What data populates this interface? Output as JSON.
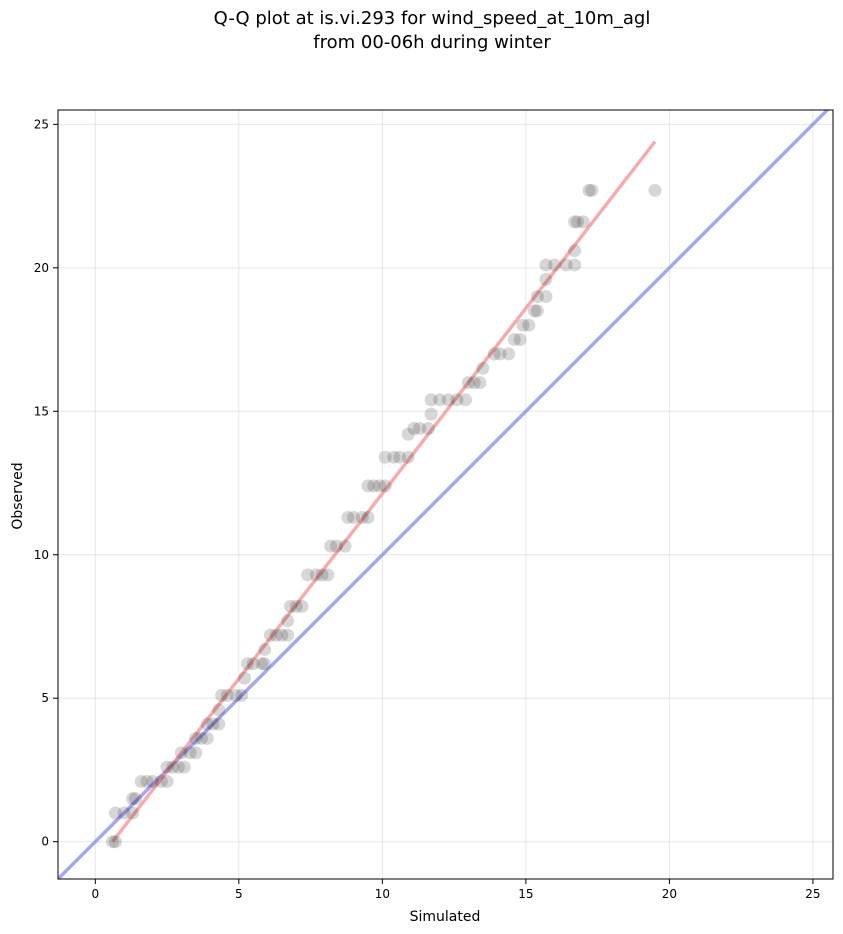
{
  "chart_data": {
    "type": "scatter",
    "title": "Q-Q plot at is.vi.293 for wind_speed_at_10m_agl",
    "subtitle": "from 00-06h during winter",
    "xlabel": "Simulated",
    "ylabel": "Observed",
    "xlim": [
      -1.3,
      25.7
    ],
    "ylim": [
      -1.3,
      25.5
    ],
    "xticks": [
      0,
      5,
      10,
      15,
      20,
      25
    ],
    "yticks": [
      0,
      5,
      10,
      15,
      20,
      25
    ],
    "xticklabels": [
      "0",
      "5",
      "10",
      "15",
      "20",
      "25"
    ],
    "yticklabels": [
      "0",
      "5",
      "10",
      "15",
      "20",
      "25"
    ],
    "grid": true,
    "colors": {
      "points": "#222222",
      "fit_line": "#f08080",
      "identity_line": "#8080f0"
    },
    "points": [
      {
        "x": 0.7,
        "y": 0.0
      },
      {
        "x": 0.6,
        "y": 0.0
      },
      {
        "x": 0.7,
        "y": 1.0
      },
      {
        "x": 1.0,
        "y": 1.0
      },
      {
        "x": 1.3,
        "y": 1.0
      },
      {
        "x": 1.3,
        "y": 1.5
      },
      {
        "x": 1.4,
        "y": 1.5
      },
      {
        "x": 1.6,
        "y": 2.1
      },
      {
        "x": 1.8,
        "y": 2.1
      },
      {
        "x": 2.0,
        "y": 2.1
      },
      {
        "x": 2.3,
        "y": 2.1
      },
      {
        "x": 2.5,
        "y": 2.1
      },
      {
        "x": 2.5,
        "y": 2.6
      },
      {
        "x": 2.7,
        "y": 2.6
      },
      {
        "x": 2.9,
        "y": 2.6
      },
      {
        "x": 3.1,
        "y": 2.6
      },
      {
        "x": 3.0,
        "y": 3.1
      },
      {
        "x": 3.3,
        "y": 3.1
      },
      {
        "x": 3.5,
        "y": 3.1
      },
      {
        "x": 3.5,
        "y": 3.6
      },
      {
        "x": 3.7,
        "y": 3.6
      },
      {
        "x": 3.9,
        "y": 3.6
      },
      {
        "x": 3.9,
        "y": 4.1
      },
      {
        "x": 4.1,
        "y": 4.1
      },
      {
        "x": 4.3,
        "y": 4.1
      },
      {
        "x": 4.3,
        "y": 4.6
      },
      {
        "x": 4.4,
        "y": 5.1
      },
      {
        "x": 4.6,
        "y": 5.1
      },
      {
        "x": 4.9,
        "y": 5.1
      },
      {
        "x": 5.1,
        "y": 5.1
      },
      {
        "x": 5.2,
        "y": 5.7
      },
      {
        "x": 5.3,
        "y": 6.2
      },
      {
        "x": 5.5,
        "y": 6.2
      },
      {
        "x": 5.8,
        "y": 6.2
      },
      {
        "x": 5.9,
        "y": 6.2
      },
      {
        "x": 5.9,
        "y": 6.7
      },
      {
        "x": 6.1,
        "y": 7.2
      },
      {
        "x": 6.3,
        "y": 7.2
      },
      {
        "x": 6.5,
        "y": 7.2
      },
      {
        "x": 6.7,
        "y": 7.2
      },
      {
        "x": 6.7,
        "y": 7.7
      },
      {
        "x": 6.8,
        "y": 8.2
      },
      {
        "x": 7.0,
        "y": 8.2
      },
      {
        "x": 7.2,
        "y": 8.2
      },
      {
        "x": 7.4,
        "y": 9.3
      },
      {
        "x": 7.7,
        "y": 9.3
      },
      {
        "x": 7.9,
        "y": 9.3
      },
      {
        "x": 8.1,
        "y": 9.3
      },
      {
        "x": 8.2,
        "y": 10.3
      },
      {
        "x": 8.4,
        "y": 10.3
      },
      {
        "x": 8.7,
        "y": 10.3
      },
      {
        "x": 8.8,
        "y": 11.3
      },
      {
        "x": 9.0,
        "y": 11.3
      },
      {
        "x": 9.3,
        "y": 11.3
      },
      {
        "x": 9.5,
        "y": 11.3
      },
      {
        "x": 9.5,
        "y": 12.4
      },
      {
        "x": 9.7,
        "y": 12.4
      },
      {
        "x": 9.9,
        "y": 12.4
      },
      {
        "x": 10.1,
        "y": 12.4
      },
      {
        "x": 10.1,
        "y": 13.4
      },
      {
        "x": 10.4,
        "y": 13.4
      },
      {
        "x": 10.6,
        "y": 13.4
      },
      {
        "x": 10.9,
        "y": 13.4
      },
      {
        "x": 10.9,
        "y": 14.2
      },
      {
        "x": 11.1,
        "y": 14.4
      },
      {
        "x": 11.3,
        "y": 14.4
      },
      {
        "x": 11.6,
        "y": 14.4
      },
      {
        "x": 11.7,
        "y": 14.9
      },
      {
        "x": 11.7,
        "y": 15.4
      },
      {
        "x": 12.0,
        "y": 15.4
      },
      {
        "x": 12.3,
        "y": 15.4
      },
      {
        "x": 12.6,
        "y": 15.4
      },
      {
        "x": 12.9,
        "y": 15.4
      },
      {
        "x": 13.0,
        "y": 16.0
      },
      {
        "x": 13.2,
        "y": 16.0
      },
      {
        "x": 13.4,
        "y": 16.0
      },
      {
        "x": 13.5,
        "y": 16.5
      },
      {
        "x": 13.9,
        "y": 17.0
      },
      {
        "x": 14.1,
        "y": 17.0
      },
      {
        "x": 14.4,
        "y": 17.0
      },
      {
        "x": 14.6,
        "y": 17.5
      },
      {
        "x": 14.8,
        "y": 17.5
      },
      {
        "x": 14.9,
        "y": 18.0
      },
      {
        "x": 15.1,
        "y": 18.0
      },
      {
        "x": 15.3,
        "y": 18.5
      },
      {
        "x": 15.4,
        "y": 18.5
      },
      {
        "x": 15.4,
        "y": 19.0
      },
      {
        "x": 15.7,
        "y": 19.0
      },
      {
        "x": 15.7,
        "y": 19.6
      },
      {
        "x": 15.7,
        "y": 20.1
      },
      {
        "x": 16.0,
        "y": 20.1
      },
      {
        "x": 16.4,
        "y": 20.1
      },
      {
        "x": 16.7,
        "y": 20.1
      },
      {
        "x": 16.7,
        "y": 20.6
      },
      {
        "x": 16.7,
        "y": 21.6
      },
      {
        "x": 16.8,
        "y": 21.6
      },
      {
        "x": 17.0,
        "y": 21.6
      },
      {
        "x": 17.2,
        "y": 22.7
      },
      {
        "x": 17.3,
        "y": 22.7
      },
      {
        "x": 19.5,
        "y": 22.7
      }
    ],
    "fit_line": {
      "x": [
        0.6,
        19.5
      ],
      "y": [
        0.0,
        24.4
      ]
    },
    "identity_line": {
      "x": [
        -1.3,
        25.7
      ],
      "y": [
        -1.3,
        25.7
      ]
    }
  }
}
